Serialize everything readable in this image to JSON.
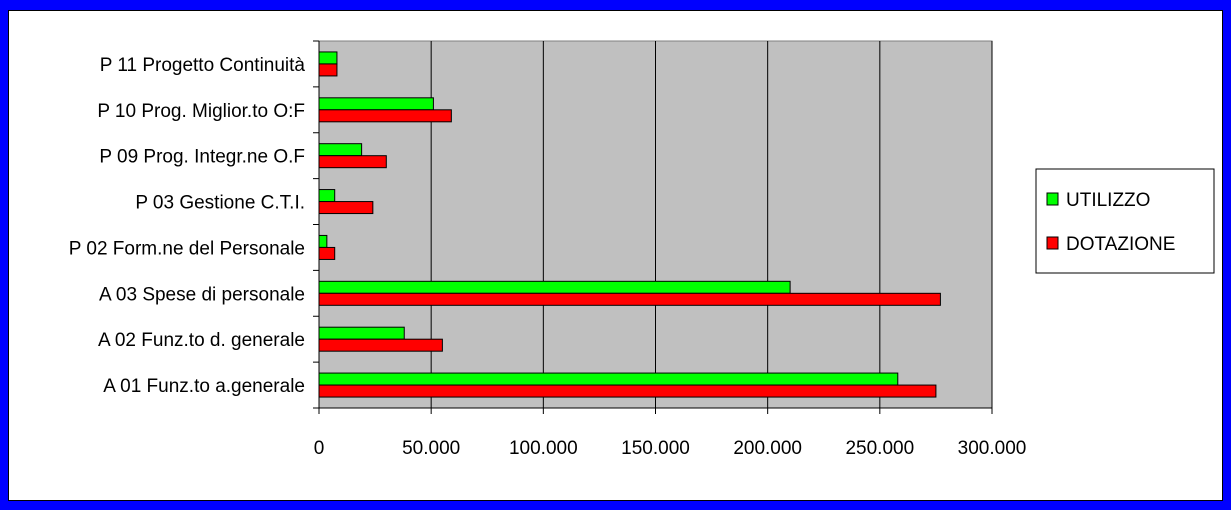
{
  "chart_data": {
    "type": "bar",
    "orientation": "horizontal",
    "categories": [
      "P 11 Progetto Continuità",
      "P 10 Prog. Miglior.to O:F",
      "P 09 Prog. Integr.ne O.F",
      "P 03 Gestione C.T.I.",
      "P 02 Form.ne del Personale",
      "A 03 Spese di personale",
      "A 02 Funz.to d. generale",
      "A 01 Funz.to a.generale"
    ],
    "series": [
      {
        "name": "UTILIZZO",
        "color": "#00ff00",
        "values": [
          8000,
          51000,
          19000,
          7000,
          3500,
          210000,
          38000,
          258000
        ]
      },
      {
        "name": "DOTAZIONE",
        "color": "#ff0000",
        "values": [
          8000,
          59000,
          30000,
          24000,
          7000,
          277000,
          55000,
          275000
        ]
      }
    ],
    "xlim": [
      0,
      300000
    ],
    "xticks": [
      0,
      50000,
      100000,
      150000,
      200000,
      250000,
      300000
    ],
    "xtick_labels": [
      "0",
      "50.000",
      "100.000",
      "150.000",
      "200.000",
      "250.000",
      "300.000"
    ],
    "plot_background": "#c0c0c0",
    "grid": "vertical",
    "legend_position": "right",
    "frame_color": "#0000ff"
  }
}
